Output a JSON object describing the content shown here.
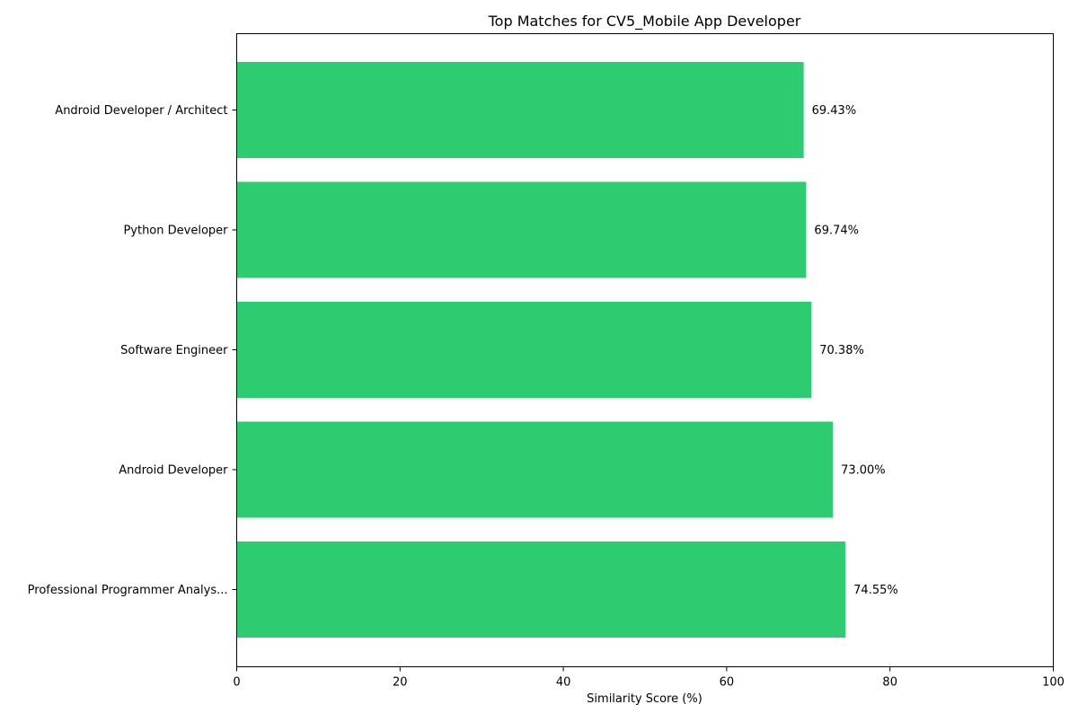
{
  "chart_data": {
    "type": "bar",
    "orientation": "horizontal",
    "title": "Top Matches for CV5_Mobile App Developer",
    "xlabel": "Similarity Score (%)",
    "ylabel": "",
    "xlim": [
      0,
      100
    ],
    "xticks": [
      0,
      20,
      40,
      60,
      80,
      100
    ],
    "grid": false,
    "bar_color": "#2ecc71",
    "categories": [
      "Professional Programmer Analys...",
      "Android Developer",
      "Software Engineer",
      "Python Developer",
      "Android Developer / Architect"
    ],
    "values": [
      74.55,
      73.0,
      70.38,
      69.74,
      69.43
    ],
    "data_labels": [
      "74.55%",
      "73.00%",
      "70.38%",
      "69.74%",
      "69.43%"
    ]
  }
}
